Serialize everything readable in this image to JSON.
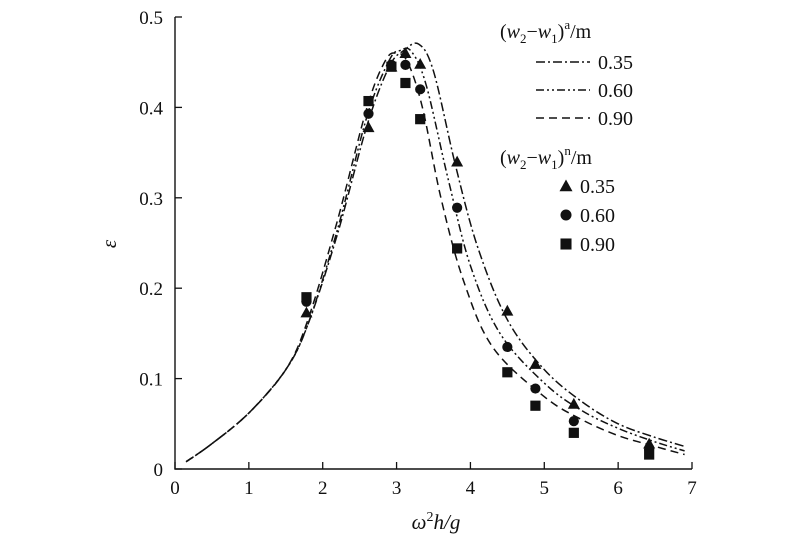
{
  "chart_data": {
    "type": "line",
    "xlabel": "ω²h/g",
    "ylabel": "ε",
    "xlim": [
      0,
      7
    ],
    "ylim": [
      0,
      0.5
    ],
    "x_ticks": [
      "0",
      "1",
      "2",
      "3",
      "4",
      "5",
      "6",
      "7"
    ],
    "y_ticks": [
      "0",
      "0.1",
      "0.2",
      "0.3",
      "0.4",
      "0.5"
    ],
    "grid": false,
    "legend_position": "top-right",
    "legend_analytical_title": "(w2−w1)a/m",
    "legend_numerical_title": "(w2−w1)n/m",
    "series_lines": [
      {
        "name": "0.35",
        "style": "dash-dot",
        "x": [
          0.15,
          0.5,
          1.0,
          1.5,
          1.8,
          2.2,
          2.6,
          2.9,
          3.1,
          3.3,
          3.5,
          3.8,
          4.1,
          4.5,
          5.0,
          5.5,
          6.0,
          6.5,
          6.9
        ],
        "y": [
          0.008,
          0.028,
          0.062,
          0.11,
          0.16,
          0.26,
          0.38,
          0.445,
          0.463,
          0.47,
          0.44,
          0.335,
          0.245,
          0.165,
          0.11,
          0.075,
          0.05,
          0.035,
          0.025
        ]
      },
      {
        "name": "0.60",
        "style": "dash-dot-dot",
        "x": [
          0.15,
          0.5,
          1.0,
          1.5,
          1.8,
          2.2,
          2.6,
          2.9,
          3.05,
          3.2,
          3.4,
          3.7,
          4.0,
          4.4,
          5.0,
          5.5,
          6.0,
          6.5,
          6.9
        ],
        "y": [
          0.008,
          0.028,
          0.062,
          0.11,
          0.16,
          0.265,
          0.39,
          0.452,
          0.463,
          0.462,
          0.425,
          0.32,
          0.225,
          0.15,
          0.095,
          0.065,
          0.045,
          0.03,
          0.02
        ]
      },
      {
        "name": "0.90",
        "style": "dashed",
        "x": [
          0.15,
          0.5,
          1.0,
          1.5,
          1.8,
          2.2,
          2.6,
          2.85,
          3.0,
          3.15,
          3.35,
          3.6,
          3.9,
          4.3,
          5.0,
          5.5,
          6.0,
          6.5,
          6.9
        ],
        "y": [
          0.008,
          0.028,
          0.062,
          0.11,
          0.165,
          0.275,
          0.4,
          0.452,
          0.46,
          0.45,
          0.4,
          0.3,
          0.21,
          0.135,
          0.08,
          0.055,
          0.037,
          0.025,
          0.016
        ]
      }
    ],
    "series_points": [
      {
        "name": "0.35",
        "marker": "triangle",
        "x": [
          1.78,
          2.62,
          2.93,
          3.12,
          3.32,
          3.82,
          4.5,
          4.88,
          5.4,
          6.42
        ],
        "y": [
          0.173,
          0.378,
          0.445,
          0.46,
          0.448,
          0.34,
          0.175,
          0.116,
          0.072,
          0.028
        ]
      },
      {
        "name": "0.60",
        "marker": "circle",
        "x": [
          1.78,
          2.62,
          2.93,
          3.12,
          3.32,
          3.82,
          4.5,
          4.88,
          5.4,
          6.42
        ],
        "y": [
          0.185,
          0.393,
          0.447,
          0.447,
          0.42,
          0.289,
          0.135,
          0.089,
          0.053,
          0.022
        ]
      },
      {
        "name": "0.90",
        "marker": "square",
        "x": [
          1.78,
          2.62,
          2.93,
          3.12,
          3.32,
          3.82,
          4.5,
          4.88,
          5.4,
          6.42
        ],
        "y": [
          0.19,
          0.407,
          0.445,
          0.427,
          0.387,
          0.244,
          0.107,
          0.07,
          0.04,
          0.016
        ]
      }
    ]
  }
}
